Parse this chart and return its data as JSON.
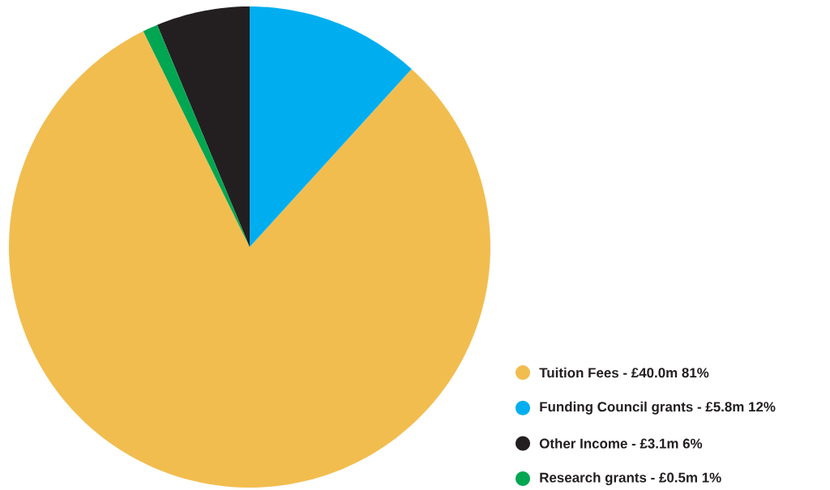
{
  "chart_data": {
    "type": "pie",
    "categories": [
      "Tuition Fees - £40.0m 81%",
      "Funding Council grants - £5.8m 12%",
      "Other Income - £3.1m 6%",
      "Research grants - £0.5m 1%"
    ],
    "values": [
      40.0,
      5.8,
      3.1,
      0.5
    ],
    "colors": [
      "#f2bd4f",
      "#00aeef",
      "#231f20",
      "#00a651"
    ],
    "legend": "bottom right"
  }
}
